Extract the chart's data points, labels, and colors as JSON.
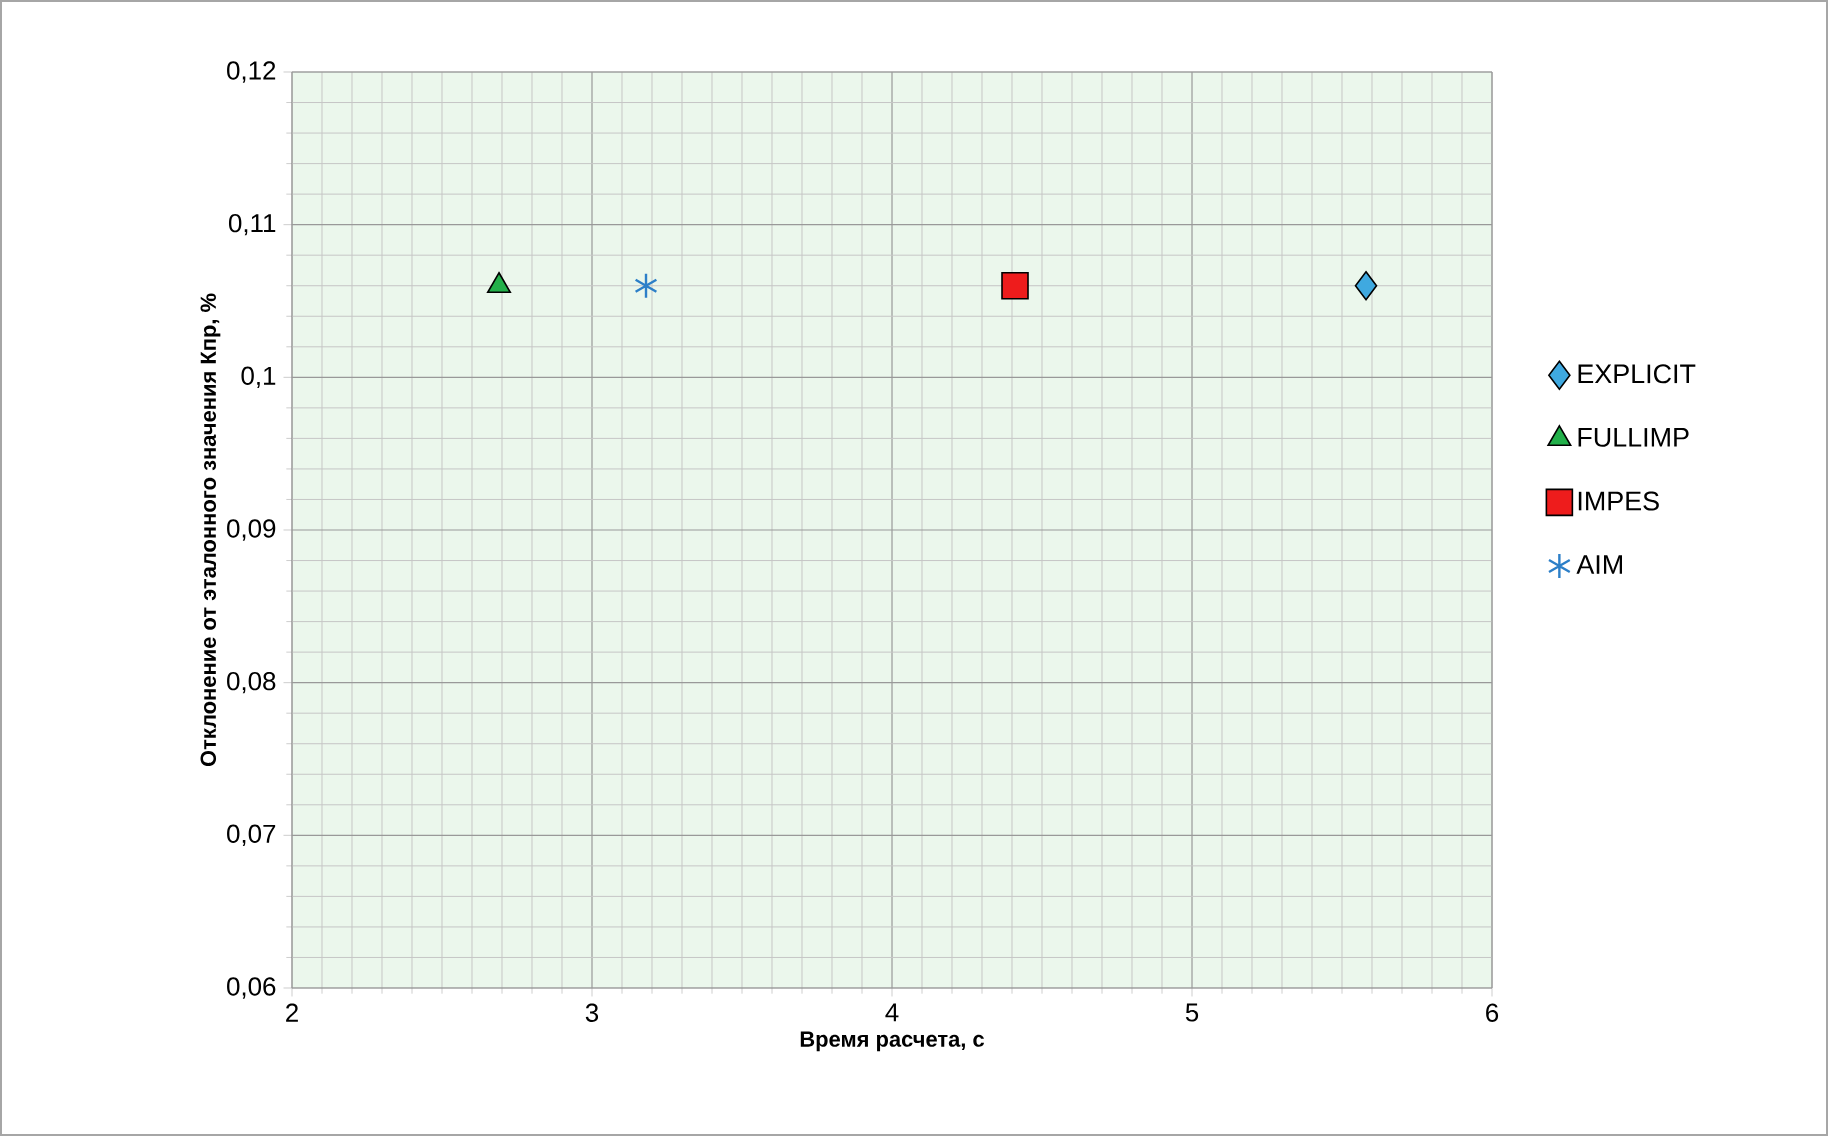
{
  "chart_data": {
    "type": "scatter",
    "xlabel": "Время расчета, с",
    "ylabel": "Отклонение от эталонного значения Кпр, %",
    "xlim": [
      2,
      6
    ],
    "ylim": [
      0.06,
      0.12
    ],
    "xticks": [
      2,
      3,
      4,
      5,
      6
    ],
    "yticks": [
      {
        "value": 0.06,
        "label": "0,06"
      },
      {
        "value": 0.07,
        "label": "0,07"
      },
      {
        "value": 0.08,
        "label": "0,08"
      },
      {
        "value": 0.09,
        "label": "0,09"
      },
      {
        "value": 0.1,
        "label": "0,1"
      },
      {
        "value": 0.11,
        "label": "0,11"
      },
      {
        "value": 0.12,
        "label": "0,12"
      }
    ],
    "grid": true,
    "legend": "right",
    "series": [
      {
        "name": "EXPLICIT",
        "color": "#3fa9e0",
        "marker": "diamond",
        "x": [
          5.58
        ],
        "values": [
          0.106
        ]
      },
      {
        "name": "FULLIMP",
        "color": "#22b04a",
        "marker": "triangle",
        "x": [
          2.69
        ],
        "values": [
          0.106
        ]
      },
      {
        "name": "IMPES",
        "color": "#ee1c1c",
        "marker": "square",
        "x": [
          4.41
        ],
        "values": [
          0.106
        ]
      },
      {
        "name": "AIM",
        "color": "#2c7fc8",
        "marker": "cross",
        "x": [
          3.18
        ],
        "values": [
          0.106
        ]
      }
    ]
  }
}
